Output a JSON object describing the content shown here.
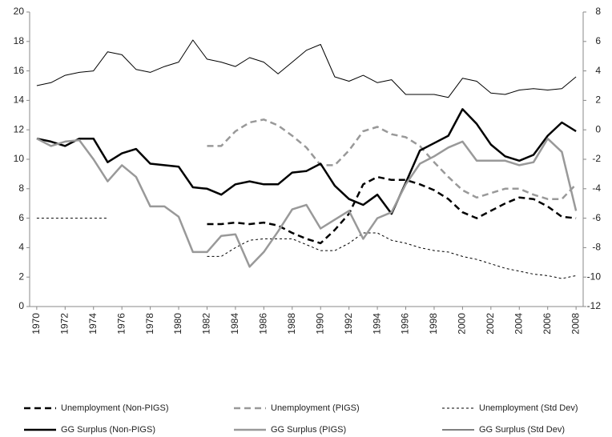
{
  "chart_data": {
    "type": "line",
    "x": [
      1970,
      1971,
      1972,
      1973,
      1974,
      1975,
      1976,
      1977,
      1978,
      1979,
      1980,
      1981,
      1982,
      1983,
      1984,
      1985,
      1986,
      1987,
      1988,
      1989,
      1990,
      1991,
      1992,
      1993,
      1994,
      1995,
      1996,
      1997,
      1998,
      1999,
      2000,
      2001,
      2002,
      2003,
      2004,
      2005,
      2006,
      2007,
      2008
    ],
    "xlim": [
      1969.5,
      2008.5
    ],
    "xticks": [
      1970,
      1972,
      1974,
      1976,
      1978,
      1980,
      1982,
      1984,
      1986,
      1988,
      1990,
      1992,
      1994,
      1996,
      1998,
      2000,
      2002,
      2004,
      2006,
      2008
    ],
    "ylim": [
      0,
      20
    ],
    "yticks": [
      0,
      2,
      4,
      6,
      8,
      10,
      12,
      14,
      16,
      18,
      20
    ],
    "y2lim": [
      -12,
      8
    ],
    "y2ticks": [
      -12,
      -10,
      -8,
      -6,
      -4,
      -2,
      0,
      2,
      4,
      6,
      8
    ],
    "legend": "bottom",
    "series": [
      {
        "name": "Unemployment (Non-PIGS)",
        "color": "#000000",
        "style": "dashed",
        "linewidth": 2.5,
        "values": [
          null,
          null,
          null,
          null,
          null,
          null,
          null,
          null,
          null,
          null,
          null,
          null,
          5.6,
          5.6,
          5.7,
          5.6,
          5.7,
          5.5,
          5.0,
          4.6,
          4.3,
          5.2,
          6.3,
          8.3,
          8.8,
          8.6,
          8.6,
          8.3,
          7.9,
          7.3,
          6.4,
          6.0,
          6.5,
          7.0,
          7.4,
          7.3,
          6.8,
          6.1,
          6.0
        ]
      },
      {
        "name": "Unemployment (PIGS)",
        "color": "#999999",
        "style": "dashed",
        "linewidth": 2.5,
        "values": [
          null,
          null,
          null,
          null,
          null,
          null,
          null,
          null,
          null,
          null,
          null,
          null,
          10.9,
          10.9,
          11.9,
          12.5,
          12.7,
          12.3,
          11.6,
          10.8,
          9.6,
          9.6,
          10.6,
          11.9,
          12.2,
          11.7,
          11.5,
          10.9,
          9.8,
          8.8,
          7.9,
          7.4,
          7.7,
          8.0,
          8.0,
          7.6,
          7.3,
          7.3,
          8.3
        ]
      },
      {
        "name": "Unemployment (Std Dev)",
        "color": "#000000",
        "style": "dotted",
        "linewidth": 1,
        "values": [
          6.0,
          6.0,
          6.0,
          6.0,
          6.0,
          6.0,
          null,
          null,
          null,
          null,
          null,
          null,
          3.4,
          3.4,
          4.0,
          4.5,
          4.6,
          4.6,
          4.6,
          4.2,
          3.8,
          3.8,
          4.3,
          5.0,
          5.0,
          4.5,
          4.3,
          4.0,
          3.8,
          3.7,
          3.4,
          3.2,
          2.9,
          2.6,
          2.4,
          2.2,
          2.1,
          1.9,
          2.1
        ]
      },
      {
        "name": "GG Surplus (Non-PIGS)",
        "color": "#000000",
        "style": "solid",
        "linewidth": 2.5,
        "axis": "y2",
        "values": [
          -0.6,
          -0.8,
          -1.1,
          -0.6,
          -0.6,
          -2.2,
          -1.6,
          -1.3,
          -2.3,
          -2.4,
          -2.5,
          -3.9,
          -4.0,
          -4.4,
          -3.7,
          -3.5,
          -3.7,
          -3.7,
          -2.9,
          -2.8,
          -2.3,
          -3.8,
          -4.7,
          -5.1,
          -4.4,
          -5.7,
          -3.6,
          -1.4,
          -0.9,
          -0.4,
          1.4,
          0.4,
          -1.0,
          -1.8,
          -2.1,
          -1.7,
          -0.4,
          0.5,
          -0.1
        ]
      },
      {
        "name": "GG Surplus (PIGS)",
        "color": "#999999",
        "style": "solid",
        "linewidth": 2.5,
        "axis": "y2",
        "values": [
          -0.6,
          -1.1,
          -0.8,
          -0.7,
          -2.0,
          -3.5,
          -2.4,
          -3.2,
          -5.2,
          -5.2,
          -5.9,
          -8.3,
          -8.3,
          -7.2,
          -7.1,
          -9.3,
          -8.3,
          -6.9,
          -5.4,
          -5.1,
          -6.7,
          -6.1,
          -5.5,
          -7.4,
          -6.0,
          -5.6,
          -3.7,
          -2.3,
          -1.8,
          -1.2,
          -0.8,
          -2.1,
          -2.1,
          -2.1,
          -2.4,
          -2.2,
          -0.6,
          -1.5,
          -5.5
        ]
      },
      {
        "name": "GG Surplus (Std Dev)",
        "color": "#000000",
        "style": "solid",
        "linewidth": 1,
        "axis": "y2",
        "values": [
          3.0,
          3.2,
          3.7,
          3.9,
          4.0,
          5.3,
          5.1,
          4.1,
          3.9,
          4.3,
          4.6,
          6.1,
          4.8,
          4.6,
          4.3,
          4.9,
          4.6,
          3.8,
          4.6,
          5.4,
          5.8,
          3.6,
          3.3,
          3.7,
          3.2,
          3.4,
          2.4,
          2.4,
          2.4,
          2.2,
          3.5,
          3.3,
          2.5,
          2.4,
          2.7,
          2.8,
          2.7,
          2.8,
          3.6
        ]
      }
    ]
  }
}
